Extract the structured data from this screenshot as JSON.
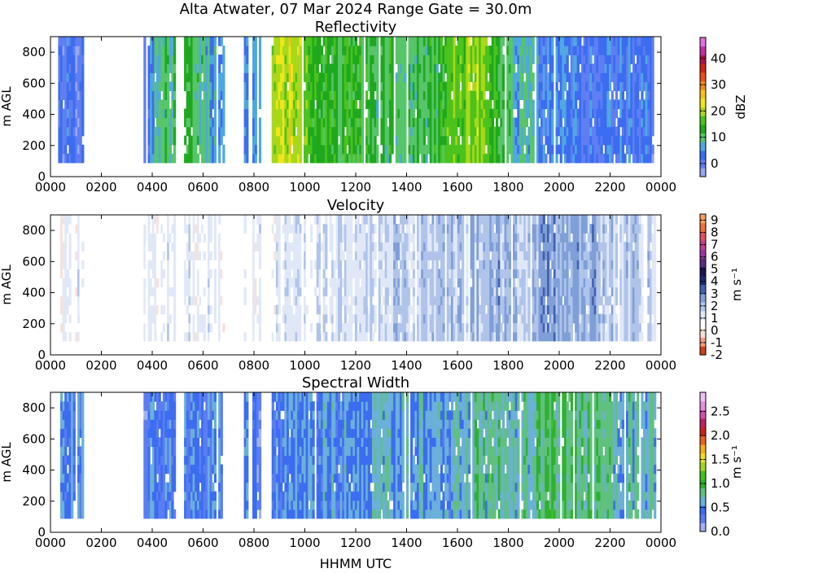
{
  "figure": {
    "suptitle": "Alta Atwater, 07 Mar 2024 Range Gate = 30.0m",
    "x_axis_label": "HHMM UTC"
  },
  "chart_data": [
    {
      "type": "heatmap",
      "title": "Reflectivity",
      "ylabel": "m AGL",
      "colorbar_label": "dBZ",
      "xlim": [
        0,
        24
      ],
      "ylim": [
        0,
        900
      ],
      "xticks": [
        "0000",
        "0200",
        "0400",
        "0600",
        "0800",
        "1000",
        "1200",
        "1400",
        "1600",
        "1800",
        "2000",
        "2200",
        "0000"
      ],
      "yticks": [
        0,
        200,
        400,
        600,
        800
      ],
      "colorbar_range": [
        -5,
        48
      ],
      "colorbar_ticks": [
        0,
        10,
        20,
        30,
        40
      ],
      "colormap": [
        "#9aa6f0",
        "#5e7ef2",
        "#3c6cf0",
        "#4fa8e0",
        "#57c56a",
        "#1fa81f",
        "#4cc21d",
        "#a8d81a",
        "#f0e61a",
        "#f5c21a",
        "#f08a1a",
        "#e8501a",
        "#d0241a",
        "#b0104a",
        "#c030a0",
        "#e070e0"
      ],
      "time_range_hours": [
        0.3,
        23.8
      ],
      "height_range_m": [
        90,
        900
      ],
      "intensity_profile": [
        {
          "t": 0.3,
          "v": 0.5
        },
        {
          "t": 0.8,
          "v": 2
        },
        {
          "t": 1.2,
          "v": 1
        },
        {
          "t": 3.7,
          "v": 2
        },
        {
          "t": 4.4,
          "v": 12
        },
        {
          "t": 4.8,
          "v": 9
        },
        {
          "t": 5.4,
          "v": 14
        },
        {
          "t": 5.9,
          "v": 10
        },
        {
          "t": 6.3,
          "v": 7
        },
        {
          "t": 7.0,
          "v": 4
        },
        {
          "t": 7.7,
          "v": 3
        },
        {
          "t": 8.3,
          "v": 6
        },
        {
          "t": 8.8,
          "v": 22
        },
        {
          "t": 9.5,
          "v": 21
        },
        {
          "t": 10.2,
          "v": 15
        },
        {
          "t": 11.0,
          "v": 12
        },
        {
          "t": 12.0,
          "v": 13
        },
        {
          "t": 13.0,
          "v": 12
        },
        {
          "t": 14.0,
          "v": 12
        },
        {
          "t": 15.0,
          "v": 11
        },
        {
          "t": 16.0,
          "v": 17
        },
        {
          "t": 16.6,
          "v": 20
        },
        {
          "t": 17.4,
          "v": 16
        },
        {
          "t": 18.0,
          "v": 10
        },
        {
          "t": 18.6,
          "v": 7
        },
        {
          "t": 19.5,
          "v": 4
        },
        {
          "t": 20.5,
          "v": 3
        },
        {
          "t": 21.5,
          "v": 3
        },
        {
          "t": 22.5,
          "v": 3
        },
        {
          "t": 23.5,
          "v": 2
        }
      ]
    },
    {
      "type": "heatmap",
      "title": "Velocity",
      "ylabel": "m AGL",
      "colorbar_label": "m s⁻¹",
      "xlim": [
        0,
        24
      ],
      "ylim": [
        0,
        900
      ],
      "xticks": [
        "0000",
        "0200",
        "0400",
        "0600",
        "0800",
        "1000",
        "1200",
        "1400",
        "1600",
        "1800",
        "2000",
        "2200",
        "0000"
      ],
      "yticks": [
        0,
        200,
        400,
        600,
        800
      ],
      "colorbar_range": [
        -2,
        9.5
      ],
      "colorbar_ticks": [
        -2,
        -1,
        0,
        1,
        2,
        3,
        4,
        5,
        6,
        7,
        8,
        9
      ],
      "colormap": [
        "#d04020",
        "#f0a080",
        "#f8e0d8",
        "#ffffff",
        "#e0e8f8",
        "#b0c4ea",
        "#7f9fd8",
        "#4060b0",
        "#1a2a70",
        "#1a1450",
        "#5a2a80",
        "#9a3aa0",
        "#c04090",
        "#e05060",
        "#f07040",
        "#f8a060"
      ],
      "time_range_hours": [
        0.3,
        23.8
      ],
      "height_range_m": [
        90,
        900
      ],
      "intensity_profile": [
        {
          "t": 0.3,
          "v": 0.6
        },
        {
          "t": 1.0,
          "v": 0.7
        },
        {
          "t": 3.7,
          "v": 0.8
        },
        {
          "t": 5.5,
          "v": 0.9
        },
        {
          "t": 7.0,
          "v": 0.6
        },
        {
          "t": 8.5,
          "v": 0.9
        },
        {
          "t": 10.0,
          "v": 1.2
        },
        {
          "t": 12.0,
          "v": 1.4
        },
        {
          "t": 13.5,
          "v": 1.7
        },
        {
          "t": 15.0,
          "v": 1.5
        },
        {
          "t": 16.0,
          "v": 2.1
        },
        {
          "t": 17.0,
          "v": 1.9
        },
        {
          "t": 17.8,
          "v": 2.4
        },
        {
          "t": 18.5,
          "v": 1.9
        },
        {
          "t": 19.5,
          "v": 2.8
        },
        {
          "t": 20.5,
          "v": 2.6
        },
        {
          "t": 21.5,
          "v": 2.1
        },
        {
          "t": 22.5,
          "v": 1.8
        },
        {
          "t": 23.5,
          "v": 1.6
        }
      ]
    },
    {
      "type": "heatmap",
      "title": "Spectral Width",
      "ylabel": "m AGL",
      "colorbar_label": "m s⁻¹",
      "xlim": [
        0,
        24
      ],
      "ylim": [
        0,
        900
      ],
      "xticks": [
        "0000",
        "0200",
        "0400",
        "0600",
        "0800",
        "1000",
        "1200",
        "1400",
        "1600",
        "1800",
        "2000",
        "2200",
        "0000"
      ],
      "yticks": [
        0,
        200,
        400,
        600,
        800
      ],
      "colorbar_range": [
        0,
        2.9
      ],
      "colorbar_ticks": [
        0.0,
        0.5,
        1.0,
        1.5,
        2.0,
        2.5
      ],
      "colorbar_tick_labels": [
        "0.0",
        "0.5",
        "1.0",
        "1.5",
        "2.0",
        "2.5"
      ],
      "colormap": [
        "#a0b0f0",
        "#5a7ef2",
        "#3c6cf0",
        "#6ab0d8",
        "#60c080",
        "#30b030",
        "#40c020",
        "#a0d820",
        "#f0e020",
        "#f0b020",
        "#e86020",
        "#d02020",
        "#c02060",
        "#d050b0",
        "#e090e0",
        "#f0c0f0"
      ],
      "time_range_hours": [
        0.3,
        23.8
      ],
      "height_range_m": [
        90,
        900
      ],
      "intensity_profile": [
        {
          "t": 0.3,
          "v": 0.55
        },
        {
          "t": 1.0,
          "v": 0.5
        },
        {
          "t": 3.7,
          "v": 0.4
        },
        {
          "t": 5.5,
          "v": 0.45
        },
        {
          "t": 7.0,
          "v": 0.45
        },
        {
          "t": 8.5,
          "v": 0.4
        },
        {
          "t": 10.0,
          "v": 0.55
        },
        {
          "t": 11.5,
          "v": 0.5
        },
        {
          "t": 13.0,
          "v": 0.65
        },
        {
          "t": 14.5,
          "v": 0.6
        },
        {
          "t": 15.5,
          "v": 0.5
        },
        {
          "t": 16.5,
          "v": 0.75
        },
        {
          "t": 17.5,
          "v": 0.8
        },
        {
          "t": 18.5,
          "v": 0.7
        },
        {
          "t": 19.5,
          "v": 0.9
        },
        {
          "t": 20.5,
          "v": 0.85
        },
        {
          "t": 21.5,
          "v": 0.8
        },
        {
          "t": 22.5,
          "v": 0.7
        },
        {
          "t": 23.5,
          "v": 0.7
        }
      ]
    }
  ]
}
